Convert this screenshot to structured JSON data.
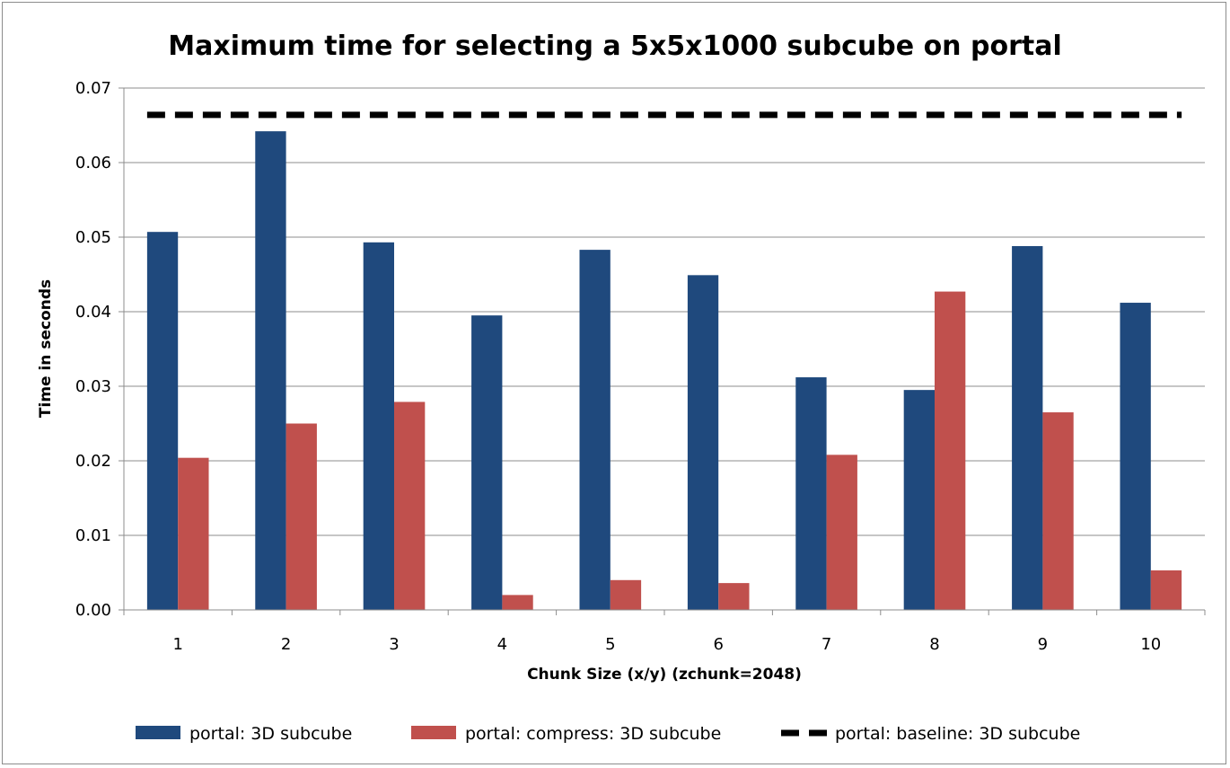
{
  "chart_data": {
    "type": "bar",
    "title": "Maximum time for selecting a 5x5x1000 subcube on portal",
    "xlabel": "Chunk Size (x/y) (zchunk=2048)",
    "ylabel": "Time in seconds",
    "categories": [
      "1",
      "2",
      "3",
      "4",
      "5",
      "6",
      "7",
      "8",
      "9",
      "10"
    ],
    "ylim": [
      0,
      0.07
    ],
    "yticks": [
      "0.00",
      "0.01",
      "0.02",
      "0.03",
      "0.04",
      "0.05",
      "0.06",
      "0.07"
    ],
    "grid": true,
    "legend_position": "bottom",
    "series": [
      {
        "name": "portal: 3D subcube",
        "kind": "bar",
        "color": "#1f497d",
        "values": [
          0.0507,
          0.0642,
          0.0493,
          0.0395,
          0.0483,
          0.0449,
          0.0312,
          0.0295,
          0.0488,
          0.0412
        ]
      },
      {
        "name": "portal: compress: 3D subcube",
        "kind": "bar",
        "color": "#c0504d",
        "values": [
          0.0204,
          0.025,
          0.0279,
          0.002,
          0.004,
          0.0036,
          0.0208,
          0.0427,
          0.0265,
          0.0053
        ]
      },
      {
        "name": "portal: baseline:  3D subcube",
        "kind": "line",
        "style": "dashed",
        "color": "#000000",
        "values": [
          0.0664,
          0.0664,
          0.0664,
          0.0664,
          0.0664,
          0.0664,
          0.0664,
          0.0664,
          0.0664,
          0.0664
        ]
      }
    ]
  }
}
